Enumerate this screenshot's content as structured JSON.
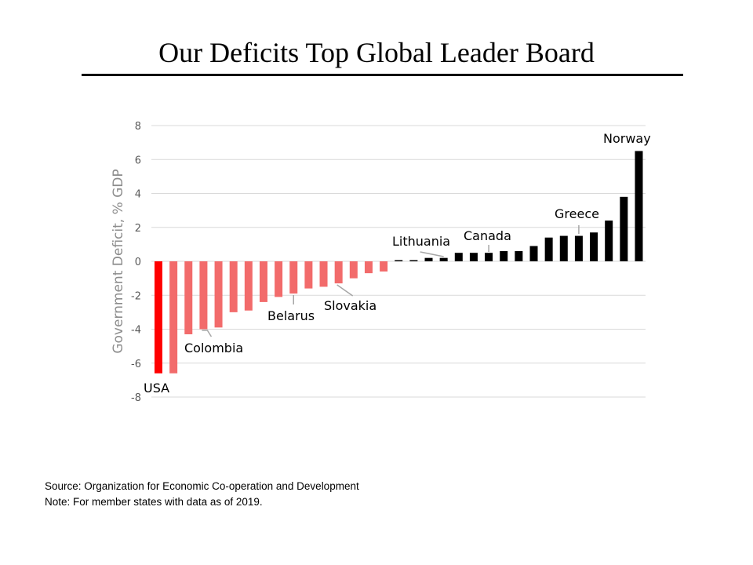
{
  "slide": {
    "title": "Our Deficits Top Global Leader Board",
    "source": "Source: Organization for Economic Co-operation and Development",
    "note": "Note: For member states with data as of 2019."
  },
  "chart_data": {
    "type": "bar",
    "ylabel": "Government Deficit, % GDP",
    "ylim": [
      -8,
      8
    ],
    "yticks": [
      8,
      6,
      4,
      2,
      0,
      -2,
      -4,
      -6,
      -8
    ],
    "grid": true,
    "colors": {
      "usa": "#ff0000",
      "deficit": "#f26b6b",
      "surplus": "#000000",
      "grid": "#d9d9d9",
      "tick": "#595959",
      "leader": "#a6a6a6"
    },
    "values": [
      -6.6,
      -6.6,
      -4.3,
      -4.0,
      -3.9,
      -3.0,
      -2.9,
      -2.4,
      -2.1,
      -1.9,
      -1.6,
      -1.5,
      -1.3,
      -1.0,
      -0.7,
      -0.6,
      0.05,
      0.05,
      0.2,
      0.2,
      0.5,
      0.5,
      0.5,
      0.6,
      0.6,
      0.9,
      1.4,
      1.5,
      1.5,
      1.7,
      2.4,
      3.8,
      6.5
    ],
    "annotations": [
      {
        "label": "USA",
        "bar": 0
      },
      {
        "label": "Colombia",
        "bar": 3
      },
      {
        "label": "Belarus",
        "bar": 9
      },
      {
        "label": "Slovakia",
        "bar": 12
      },
      {
        "label": "Lithuania",
        "bar": 19
      },
      {
        "label": "Canada",
        "bar": 22
      },
      {
        "label": "Greece",
        "bar": 28
      },
      {
        "label": "Norway",
        "bar": 32
      }
    ]
  }
}
